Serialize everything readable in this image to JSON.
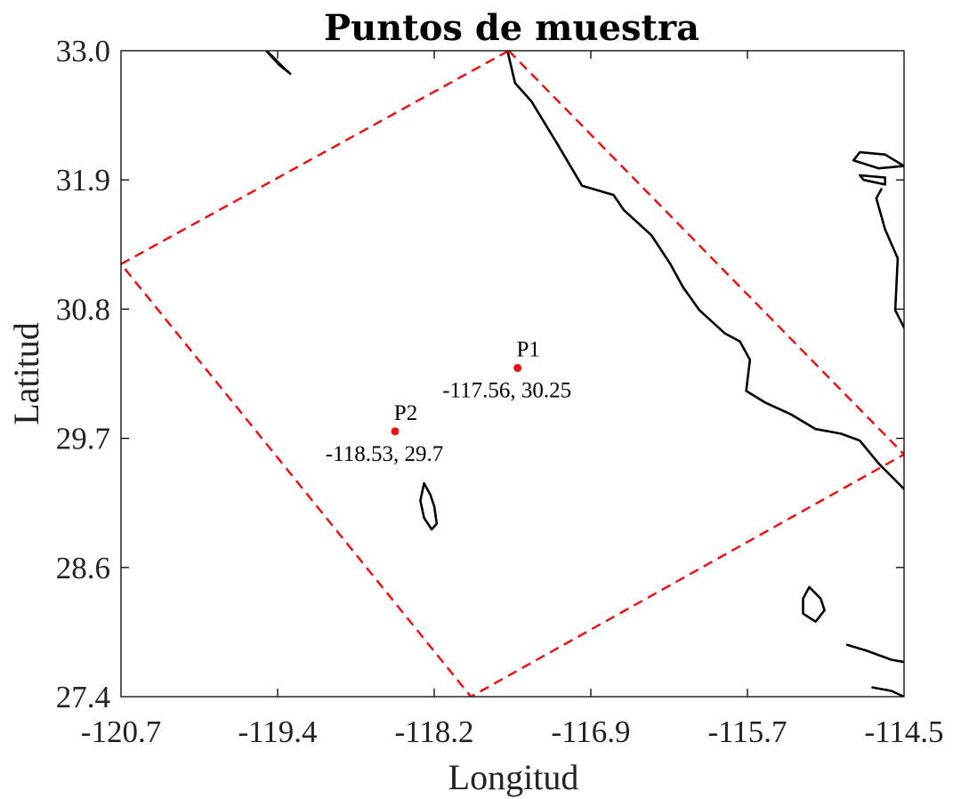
{
  "chart_data": {
    "type": "scatter",
    "title": "Puntos de muestra",
    "xlabel": "Longitud",
    "ylabel": "Latitud",
    "xlim": [
      -120.7,
      -114.5
    ],
    "ylim": [
      27.4,
      33.0
    ],
    "xticks": [
      "-120.7",
      "-119.4",
      "-118.2",
      "-116.9",
      "-115.7",
      "-114.5"
    ],
    "yticks": [
      "27.4",
      "28.6",
      "29.7",
      "30.8",
      "31.9",
      "33.0"
    ],
    "grid": false,
    "points": [
      {
        "label": "P1",
        "coords": "-117.56, 30.25",
        "lon": -117.56,
        "lat": 30.25
      },
      {
        "label": "P2",
        "coords": "-118.53, 29.7",
        "lon": -118.53,
        "lat": 29.7
      }
    ],
    "domain_box": {
      "style": "dashed",
      "color": "#ee1111",
      "corners": [
        [
          -117.63,
          33.0
        ],
        [
          -114.5,
          29.5
        ],
        [
          -117.93,
          27.4
        ],
        [
          -120.7,
          31.15
        ]
      ]
    },
    "coastline": {
      "color": "#000000",
      "mainland": [
        [
          -117.64,
          33.0
        ],
        [
          -117.58,
          32.72
        ],
        [
          -117.45,
          32.56
        ],
        [
          -117.25,
          32.2
        ],
        [
          -117.05,
          31.83
        ],
        [
          -116.8,
          31.75
        ],
        [
          -116.72,
          31.62
        ],
        [
          -116.5,
          31.4
        ],
        [
          -116.35,
          31.15
        ],
        [
          -116.25,
          30.95
        ],
        [
          -116.12,
          30.75
        ],
        [
          -115.92,
          30.55
        ],
        [
          -115.8,
          30.48
        ],
        [
          -115.72,
          30.32
        ],
        [
          -115.75,
          30.05
        ],
        [
          -115.6,
          29.95
        ],
        [
          -115.4,
          29.85
        ],
        [
          -115.2,
          29.72
        ],
        [
          -115.0,
          29.68
        ],
        [
          -114.85,
          29.62
        ],
        [
          -114.7,
          29.42
        ],
        [
          -114.5,
          29.2
        ]
      ],
      "islands": [
        [
          [
            -119.55,
            33.0
          ],
          [
            -119.45,
            32.88
          ],
          [
            -119.36,
            32.8
          ],
          [
            -119.42,
            32.86
          ],
          [
            -119.5,
            32.95
          ]
        ],
        [
          [
            -118.3,
            29.25
          ],
          [
            -118.25,
            29.15
          ],
          [
            -118.22,
            29.05
          ],
          [
            -118.2,
            28.9
          ],
          [
            -118.24,
            28.85
          ],
          [
            -118.3,
            28.95
          ],
          [
            -118.33,
            29.1
          ]
        ],
        [
          [
            -115.25,
            28.35
          ],
          [
            -115.16,
            28.25
          ],
          [
            -115.13,
            28.15
          ],
          [
            -115.2,
            28.05
          ],
          [
            -115.3,
            28.12
          ],
          [
            -115.3,
            28.25
          ]
        ],
        [
          [
            -114.85,
            32.12
          ],
          [
            -114.65,
            32.1
          ],
          [
            -114.5,
            32.0
          ],
          [
            -114.7,
            31.98
          ],
          [
            -114.9,
            32.05
          ]
        ],
        [
          [
            -114.85,
            31.92
          ],
          [
            -114.65,
            31.9
          ],
          [
            -114.65,
            31.84
          ],
          [
            -114.82,
            31.88
          ]
        ]
      ],
      "peninsula": [
        [
          -114.5,
          30.6
        ],
        [
          -114.57,
          30.75
        ],
        [
          -114.55,
          31.2
        ],
        [
          -114.65,
          31.45
        ],
        [
          -114.72,
          31.72
        ],
        [
          -114.68,
          31.8
        ]
      ],
      "southeast": [
        [
          -114.95,
          27.85
        ],
        [
          -114.8,
          27.8
        ],
        [
          -114.6,
          27.72
        ],
        [
          -114.5,
          27.7
        ]
      ],
      "southeast2": [
        [
          -114.75,
          27.48
        ],
        [
          -114.6,
          27.45
        ],
        [
          -114.5,
          27.4
        ]
      ]
    }
  }
}
